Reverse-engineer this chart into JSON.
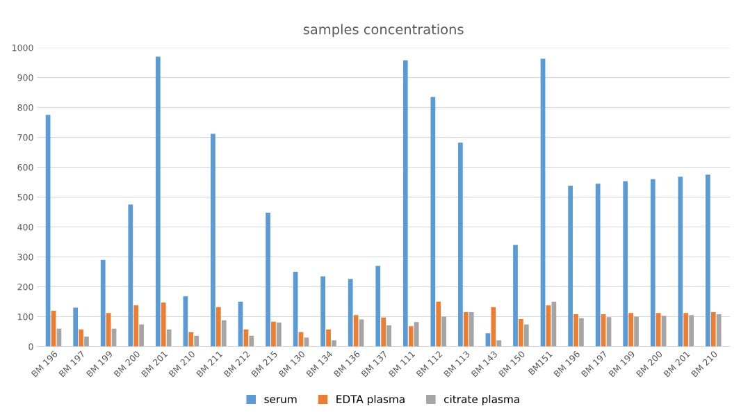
{
  "chart_data": {
    "type": "bar",
    "title": "samples concentrations",
    "categories": [
      "BM 196",
      "BM 197",
      "BM 199",
      "BM 200",
      "BM 201",
      "BM 210",
      "BM 211",
      "BM 212",
      "BM 215",
      "BM 130",
      "BM 134",
      "BM 136",
      "BM 137",
      "BM 111",
      "BM 112",
      "BM 113",
      "BM 143",
      "BM 150",
      "BM151",
      "BM 196",
      "BM 197",
      "BM 199",
      "BM 200",
      "BM 201",
      "BM 210"
    ],
    "series": [
      {
        "name": "serum",
        "color": "#5b9bd5",
        "values": [
          775,
          130,
          290,
          475,
          970,
          168,
          712,
          150,
          448,
          250,
          235,
          226,
          270,
          958,
          835,
          682,
          45,
          340,
          963,
          538,
          545,
          553,
          560,
          568,
          575
        ]
      },
      {
        "name": "EDTA plasma",
        "color": "#ed7d31",
        "values": [
          120,
          57,
          112,
          138,
          147,
          48,
          132,
          57,
          83,
          48,
          57,
          105,
          97,
          68,
          150,
          115,
          132,
          92,
          138,
          108,
          108,
          112,
          112,
          112,
          115
        ]
      },
      {
        "name": "citrate plasma",
        "color": "#a5a5a5",
        "values": [
          60,
          33,
          60,
          74,
          57,
          36,
          88,
          36,
          80,
          30,
          21,
          91,
          71,
          82,
          100,
          115,
          21,
          74,
          150,
          95,
          98,
          100,
          103,
          105,
          108
        ]
      }
    ],
    "ylim": [
      0,
      1000
    ],
    "yticks": [
      0,
      100,
      200,
      300,
      400,
      500,
      600,
      700,
      800,
      900,
      1000
    ],
    "grid": "y",
    "legend": "bottom"
  }
}
